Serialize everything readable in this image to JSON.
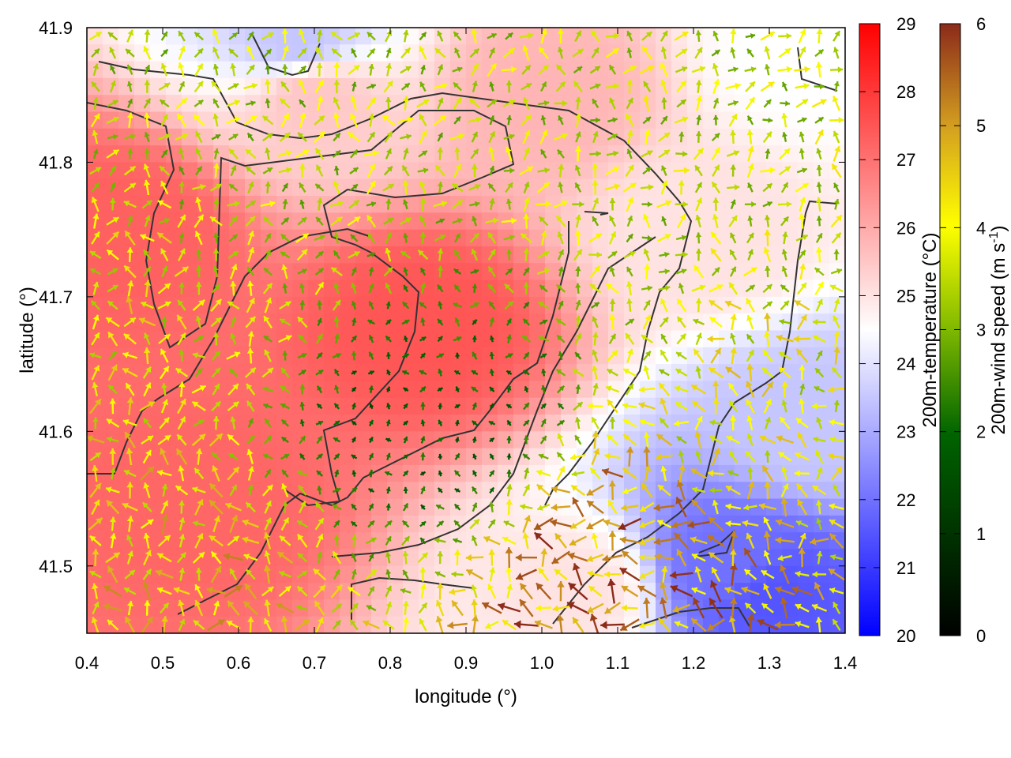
{
  "chart_data": {
    "type": "heatmap",
    "title": "",
    "xlabel": "longitude (°)",
    "ylabel": "latitude (°)",
    "xlim": [
      0.4,
      1.4
    ],
    "ylim": [
      41.45,
      41.9
    ],
    "x_ticks": [
      "0.4",
      "0.5",
      "0.6",
      "0.7",
      "0.8",
      "0.9",
      "1.0",
      "1.1",
      "1.2",
      "1.3",
      "1.4"
    ],
    "y_ticks": [
      "41.5",
      "41.6",
      "41.7",
      "41.8",
      "41.9"
    ],
    "grid": false,
    "temperature_colorbar": {
      "label": "200m-temperature (°C)",
      "range": [
        20,
        29
      ],
      "ticks": [
        "20",
        "21",
        "22",
        "23",
        "24",
        "25",
        "26",
        "27",
        "28",
        "29"
      ],
      "colors": {
        "low": "#0000ff",
        "mid": "#ffffff",
        "high": "#ff0000"
      }
    },
    "wind_colorbar": {
      "label_main": "200m-wind speed (m s",
      "label_sup": "-1",
      "label_end": ")",
      "range": [
        0,
        6
      ],
      "ticks": [
        "0",
        "1",
        "2",
        "3",
        "4",
        "5",
        "6"
      ],
      "colors": [
        "#000000",
        "#006400",
        "#7fb800",
        "#ffff00",
        "#d4a020",
        "#8b2a1a"
      ]
    },
    "temperature_field_description_points": [
      {
        "lon": 0.85,
        "lat": 41.68,
        "temp": 27.5
      },
      {
        "lon": 0.55,
        "lat": 41.55,
        "temp": 27.2
      },
      {
        "lon": 0.45,
        "lat": 41.75,
        "temp": 27.3
      },
      {
        "lon": 0.7,
        "lat": 41.85,
        "temp": 25.5
      },
      {
        "lon": 0.68,
        "lat": 41.89,
        "temp": 23.5
      },
      {
        "lon": 1.0,
        "lat": 41.85,
        "temp": 25.8
      },
      {
        "lon": 1.2,
        "lat": 41.75,
        "temp": 25.0
      },
      {
        "lon": 1.35,
        "lat": 41.6,
        "temp": 23.5
      },
      {
        "lon": 1.25,
        "lat": 41.5,
        "temp": 22.0
      },
      {
        "lon": 1.3,
        "lat": 41.48,
        "temp": 21.5
      },
      {
        "lon": 1.05,
        "lat": 41.48,
        "temp": 25.0
      },
      {
        "lon": 1.35,
        "lat": 41.88,
        "temp": 24.5
      }
    ],
    "wind_field_description_points": [
      {
        "lon": 0.85,
        "lat": 41.6,
        "speed": 1.2,
        "dir_deg": 90
      },
      {
        "lon": 0.5,
        "lat": 41.5,
        "speed": 4.0,
        "dir_deg": 100
      },
      {
        "lon": 1.1,
        "lat": 41.5,
        "speed": 5.0,
        "dir_deg": 150
      },
      {
        "lon": 1.3,
        "lat": 41.6,
        "speed": 3.5,
        "dir_deg": 120
      },
      {
        "lon": 1.2,
        "lat": 41.8,
        "speed": 3.0,
        "dir_deg": 60
      },
      {
        "lon": 0.6,
        "lat": 41.8,
        "speed": 2.8,
        "dir_deg": 80
      },
      {
        "lon": 0.45,
        "lat": 41.7,
        "speed": 3.5,
        "dir_deg": 95
      }
    ]
  }
}
